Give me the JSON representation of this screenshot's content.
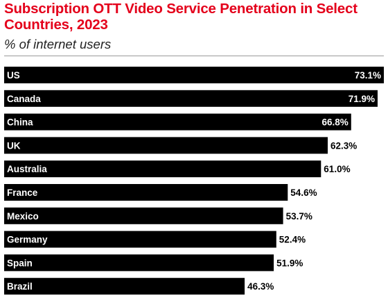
{
  "chart_data": {
    "type": "bar",
    "orientation": "horizontal",
    "title": "Subscription OTT Video Service Penetration in Select Countries, 2023",
    "subtitle": "% of internet users",
    "categories": [
      "US",
      "Canada",
      "China",
      "UK",
      "Australia",
      "France",
      "Mexico",
      "Germany",
      "Spain",
      "Brazil"
    ],
    "values": [
      73.1,
      71.9,
      66.8,
      62.3,
      61.0,
      54.6,
      53.7,
      52.4,
      51.9,
      46.3
    ],
    "value_labels": [
      "73.1%",
      "71.9%",
      "66.8%",
      "62.3%",
      "61.0%",
      "54.6%",
      "53.7%",
      "52.4%",
      "51.9%",
      "46.3%"
    ],
    "unit": "%",
    "xlim": [
      0,
      73.1
    ],
    "grid": false,
    "legend": "none",
    "colors": {
      "bar": "#000000",
      "title": "#e4001b",
      "label_inside": "#ffffff",
      "label_outside": "#000000"
    }
  }
}
